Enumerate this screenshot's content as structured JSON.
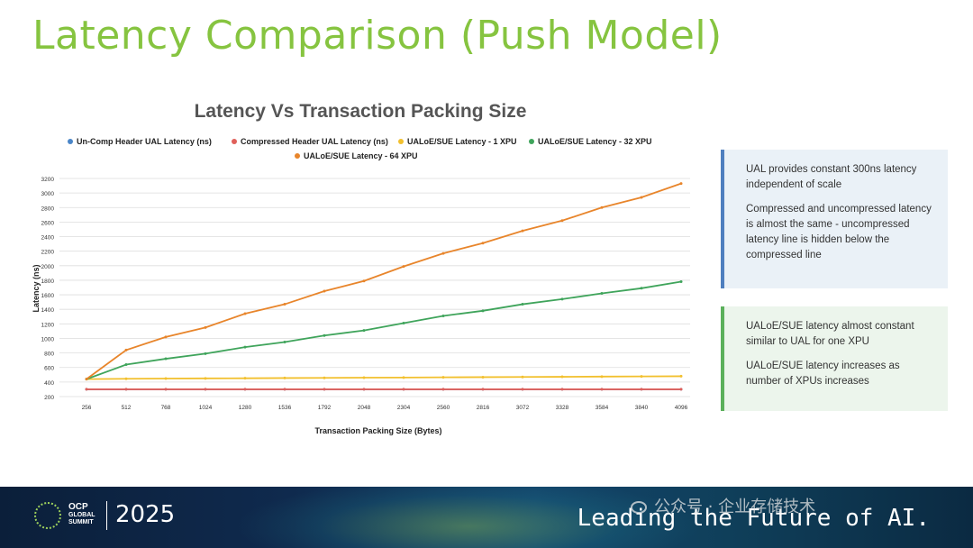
{
  "slide": {
    "title": "Latency Comparison (Push Model)"
  },
  "chart_data": {
    "type": "line",
    "title": "Latency Vs Transaction Packing Size",
    "xlabel": "Transaction Packing Size (Bytes)",
    "ylabel": "Latency (ns)",
    "x": [
      "256",
      "512",
      "768",
      "1024",
      "1280",
      "1536",
      "1792",
      "2048",
      "2304",
      "2560",
      "2816",
      "3072",
      "3328",
      "3584",
      "3840",
      "4096"
    ],
    "ylim": [
      200,
      3200
    ],
    "yticks": [
      "200",
      "400",
      "600",
      "800",
      "1000",
      "1200",
      "1400",
      "1600",
      "1800",
      "2000",
      "2200",
      "2400",
      "2600",
      "2800",
      "3000",
      "3200"
    ],
    "grid": true,
    "legend_position": "top",
    "series": [
      {
        "name": "Un-Comp Header UAL Latency (ns)",
        "color": "#4a86c8",
        "values": [
          300,
          300,
          300,
          300,
          300,
          300,
          300,
          300,
          300,
          300,
          300,
          300,
          300,
          300,
          300,
          300
        ]
      },
      {
        "name": "Compressed Header UAL Latency (ns)",
        "color": "#e0605a",
        "values": [
          300,
          300,
          300,
          300,
          300,
          300,
          300,
          300,
          300,
          300,
          300,
          300,
          300,
          300,
          300,
          300
        ]
      },
      {
        "name": "UALoE/SUE Latency - 1 XPU",
        "color": "#f2c02e",
        "values": [
          440,
          445,
          448,
          450,
          452,
          455,
          457,
          460,
          462,
          465,
          467,
          470,
          472,
          475,
          477,
          480
        ]
      },
      {
        "name": "UALoE/SUE Latency - 32 XPU",
        "color": "#3fa45b",
        "values": [
          440,
          640,
          720,
          790,
          880,
          950,
          1040,
          1110,
          1210,
          1310,
          1380,
          1470,
          1540,
          1620,
          1690,
          1780
        ]
      },
      {
        "name": "UALoE/SUE Latency - 64 XPU",
        "color": "#e8852b",
        "values": [
          440,
          840,
          1020,
          1150,
          1340,
          1470,
          1650,
          1790,
          1990,
          2170,
          2310,
          2480,
          2620,
          2800,
          2940,
          3130
        ]
      }
    ]
  },
  "callouts": {
    "ual": {
      "line1": "UAL provides constant 300ns latency independent of scale",
      "line2": "Compressed and uncompressed latency is almost the same - uncompressed latency line is hidden below the compressed line"
    },
    "ualoe": {
      "line1": "UALoE/SUE latency almost constant similar to UAL for one XPU",
      "line2": "UALoE/SUE latency increases as number of XPUs increases"
    }
  },
  "footer": {
    "logo_line1": "OCP",
    "logo_line2": "GLOBAL",
    "logo_line3": "SUMMIT",
    "year": "2025",
    "tagline": "Leading the Future of AI."
  },
  "watermark": "公众号 · 企业存储技术"
}
